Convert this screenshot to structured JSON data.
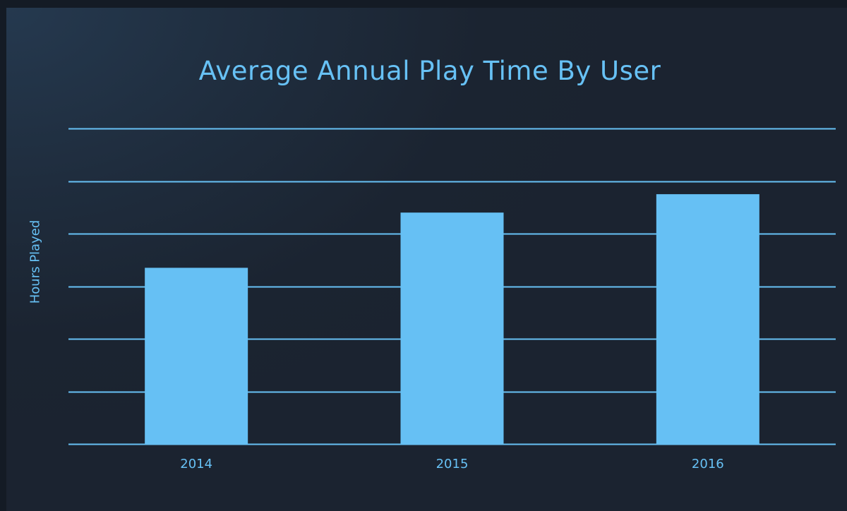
{
  "colors": {
    "accent": "#67c1f5",
    "bar": "#66c0f4",
    "background": "#1b2330"
  },
  "chart_data": {
    "type": "bar",
    "title": "Average Annual Play Time By User",
    "xlabel": "",
    "ylabel": "Hours Played",
    "categories": [
      "2014",
      "2015",
      "2016"
    ],
    "values": [
      3.35,
      4.4,
      4.75
    ],
    "ylim": [
      0,
      6
    ],
    "grid": true,
    "y_tick_labels_shown": false
  }
}
